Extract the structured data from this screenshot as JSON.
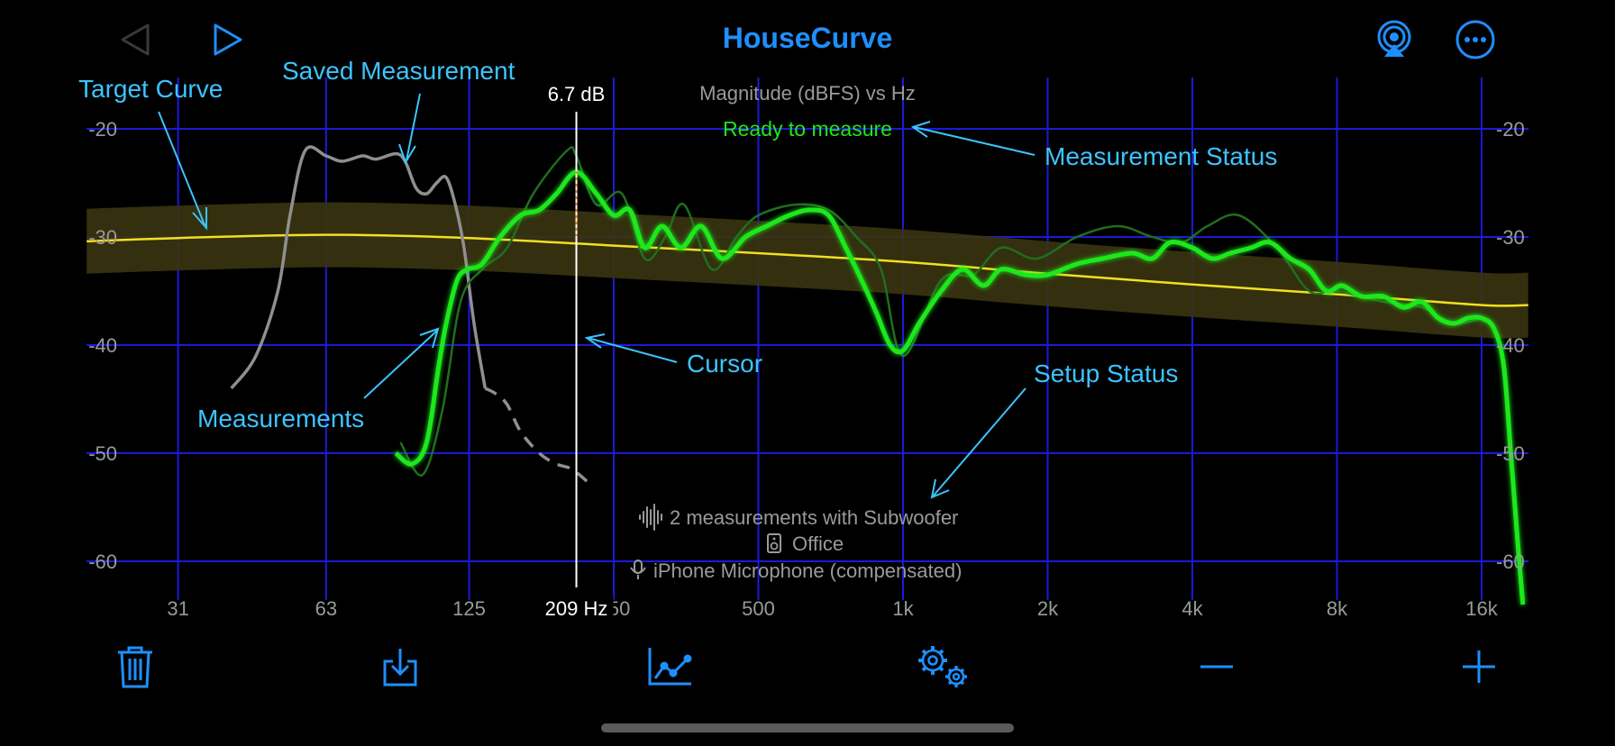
{
  "app": {
    "title": "HouseCurve"
  },
  "toolbar_top": {
    "back_icon": "triangle-left-icon",
    "play_icon": "play-icon",
    "airplay_icon": "airplay-icon",
    "more_icon": "ellipsis-circle-icon"
  },
  "toolbar_bottom": {
    "items": [
      "trash-icon",
      "export-icon",
      "chart-icon",
      "settings-icon",
      "zoom-out-icon",
      "zoom-in-icon"
    ]
  },
  "plot": {
    "title": "Magnitude (dBFS) vs Hz",
    "status": "Ready to measure",
    "cursor": {
      "freq": 209,
      "freq_label": "209 Hz",
      "value_label": "6.7 dB"
    },
    "setup": {
      "measurements": "2 measurements with Subwoofer",
      "room": "Office",
      "microphone": "iPhone Microphone (compensated)"
    }
  },
  "annotations": {
    "target_curve": "Target Curve",
    "saved_measurement": "Saved Measurement",
    "measurement_status": "Measurement Status",
    "cursor": "Cursor",
    "measurements": "Measurements",
    "setup_status": "Setup Status"
  },
  "colors": {
    "background": "#000000",
    "grid": "#1a1ad8",
    "accent": "#1e8fff",
    "annotation": "#3cc4ff",
    "measurement": "#1ee81e",
    "measurement_faint": "#1f6e1f",
    "target": "#f0e020",
    "target_band": "#3a3410",
    "saved": "#8f8f8f",
    "status": "#1ee81e"
  },
  "chart_data": {
    "type": "line",
    "title": "Magnitude (dBFS) vs Hz",
    "x_scale": "log",
    "x_ticks": [
      {
        "v": 31,
        "label": "31"
      },
      {
        "v": 63,
        "label": "63"
      },
      {
        "v": 125,
        "label": "125"
      },
      {
        "v": 250,
        "label": "250"
      },
      {
        "v": 500,
        "label": "500"
      },
      {
        "v": 1000,
        "label": "1k"
      },
      {
        "v": 2000,
        "label": "2k"
      },
      {
        "v": 4000,
        "label": "4k"
      },
      {
        "v": 8000,
        "label": "8k"
      },
      {
        "v": 16000,
        "label": "16k"
      }
    ],
    "y_ticks": [
      -20,
      -30,
      -40,
      -50,
      -60
    ],
    "xlim": [
      20,
      20000
    ],
    "ylim": [
      -64,
      -17
    ],
    "grid": true,
    "series": [
      {
        "kind": "target",
        "x": [
          20,
          31,
          63,
          125,
          250,
          500,
          1000,
          2000,
          4000,
          8000,
          16000,
          20000
        ],
        "y": [
          -30.4,
          -30.1,
          -29.8,
          -30.1,
          -30.8,
          -31.5,
          -32.3,
          -33.4,
          -34.4,
          -35.3,
          -36.3,
          -36.3
        ],
        "band": 3
      },
      {
        "kind": "saved",
        "x": [
          40,
          45,
          50,
          53,
          57,
          63,
          68,
          75,
          80,
          88,
          92,
          97,
          102,
          107,
          112,
          117,
          122,
          128,
          135
        ],
        "y": [
          -44,
          -41,
          -35,
          -28,
          -22,
          -22.5,
          -23,
          -22.5,
          -22.8,
          -22.3,
          -23,
          -25.5,
          -26,
          -25,
          -24.5,
          -27,
          -31,
          -38,
          -44
        ]
      },
      {
        "kind": "saved_dashed",
        "x": [
          135,
          142,
          150,
          160,
          175,
          190,
          205,
          225
        ],
        "y": [
          -44,
          -44.5,
          -45.5,
          -48,
          -50,
          -51,
          -51.5,
          -53
        ]
      },
      {
        "kind": "measurement_faint",
        "x": [
          90,
          100,
          110,
          120,
          133,
          150,
          170,
          200,
          209,
          230,
          260,
          290,
          320,
          350,
          400,
          450,
          500,
          600,
          700,
          800,
          900,
          1000,
          1200,
          1400,
          1600,
          1900,
          2300,
          2800,
          3300,
          3800,
          4300,
          5000,
          6000,
          7000,
          8000,
          10000,
          12000,
          14000,
          16000
        ],
        "y": [
          -49,
          -52,
          -46,
          -36,
          -33,
          -31,
          -26,
          -22,
          -22.5,
          -27,
          -26,
          -32,
          -30,
          -27,
          -33,
          -30,
          -28,
          -27,
          -27.5,
          -30,
          -33,
          -41,
          -34,
          -33.5,
          -31,
          -32,
          -30,
          -29,
          -30,
          -30.5,
          -29,
          -28,
          -31,
          -35,
          -35,
          -36,
          -36.5,
          -38,
          -37.5
        ]
      },
      {
        "kind": "measurement",
        "x": [
          88,
          95,
          102,
          108,
          112,
          118,
          124,
          133,
          145,
          160,
          175,
          190,
          209,
          230,
          250,
          270,
          290,
          315,
          345,
          380,
          420,
          470,
          520,
          580,
          640,
          700,
          760,
          820,
          880,
          940,
          1000,
          1080,
          1200,
          1330,
          1470,
          1600,
          1800,
          2000,
          2300,
          2600,
          3000,
          3300,
          3600,
          4000,
          4400,
          4800,
          5300,
          5800,
          6400,
          7000,
          7600,
          8200,
          9000,
          10000,
          11000,
          12000,
          13000,
          14000,
          15000,
          16000,
          17000,
          17800,
          18400,
          19000,
          19500
        ],
        "y": [
          -50,
          -51,
          -49,
          -42,
          -38,
          -34,
          -33,
          -32.5,
          -30,
          -28,
          -27.5,
          -26,
          -24,
          -26,
          -28,
          -27.5,
          -31,
          -29,
          -31,
          -29,
          -32,
          -30,
          -29,
          -28,
          -27.5,
          -28,
          -31,
          -34,
          -37,
          -40,
          -40.5,
          -38,
          -35,
          -33,
          -34.5,
          -33,
          -33.5,
          -33.5,
          -32.5,
          -32,
          -31.5,
          -32,
          -30.5,
          -31,
          -32,
          -31.5,
          -31,
          -30.5,
          -32,
          -33,
          -35,
          -34.5,
          -35.5,
          -35.5,
          -36.5,
          -36,
          -37.5,
          -38,
          -37.5,
          -37.5,
          -38.5,
          -42,
          -50,
          -58,
          -64
        ]
      }
    ]
  }
}
